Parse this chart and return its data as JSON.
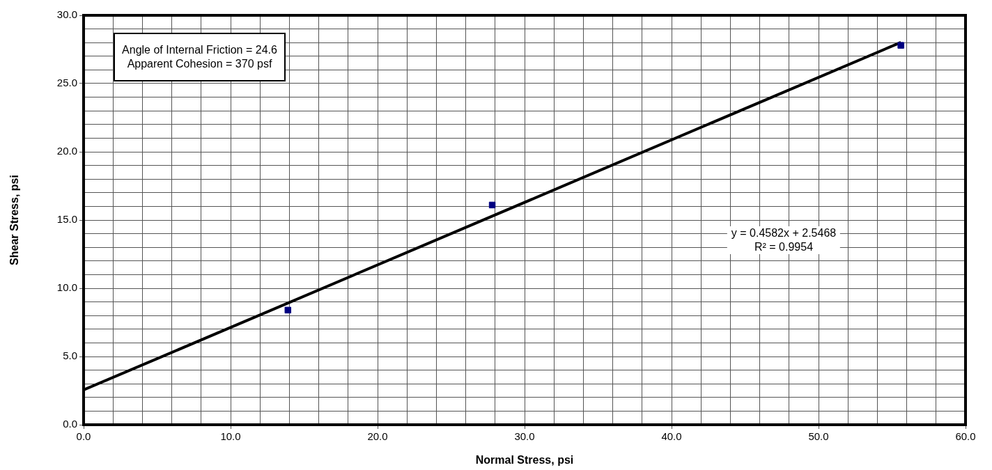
{
  "chart_data": {
    "type": "scatter",
    "xlabel": "Normal Stress, psi",
    "ylabel": "Shear Stress, psi",
    "xlim": [
      0,
      60
    ],
    "ylim": [
      0,
      30
    ],
    "xticks": [
      {
        "value": 0,
        "label": "0.0"
      },
      {
        "value": 2,
        "label": null
      },
      {
        "value": 4,
        "label": null
      },
      {
        "value": 6,
        "label": null
      },
      {
        "value": 8,
        "label": null
      },
      {
        "value": 10,
        "label": "10.0"
      },
      {
        "value": 12,
        "label": null
      },
      {
        "value": 14,
        "label": null
      },
      {
        "value": 16,
        "label": null
      },
      {
        "value": 18,
        "label": null
      },
      {
        "value": 20,
        "label": "20.0"
      },
      {
        "value": 22,
        "label": null
      },
      {
        "value": 24,
        "label": null
      },
      {
        "value": 26,
        "label": null
      },
      {
        "value": 28,
        "label": null
      },
      {
        "value": 30,
        "label": "30.0"
      },
      {
        "value": 32,
        "label": null
      },
      {
        "value": 34,
        "label": null
      },
      {
        "value": 36,
        "label": null
      },
      {
        "value": 38,
        "label": null
      },
      {
        "value": 40,
        "label": "40.0"
      },
      {
        "value": 42,
        "label": null
      },
      {
        "value": 44,
        "label": null
      },
      {
        "value": 46,
        "label": null
      },
      {
        "value": 48,
        "label": null
      },
      {
        "value": 50,
        "label": "50.0"
      },
      {
        "value": 52,
        "label": null
      },
      {
        "value": 54,
        "label": null
      },
      {
        "value": 56,
        "label": null
      },
      {
        "value": 58,
        "label": null
      },
      {
        "value": 60,
        "label": "60.0"
      }
    ],
    "yticks": [
      {
        "value": 0,
        "label": "0.0"
      },
      {
        "value": 1,
        "label": null
      },
      {
        "value": 2,
        "label": null
      },
      {
        "value": 3,
        "label": null
      },
      {
        "value": 4,
        "label": null
      },
      {
        "value": 5,
        "label": "5.0"
      },
      {
        "value": 6,
        "label": null
      },
      {
        "value": 7,
        "label": null
      },
      {
        "value": 8,
        "label": null
      },
      {
        "value": 9,
        "label": null
      },
      {
        "value": 10,
        "label": "10.0"
      },
      {
        "value": 11,
        "label": null
      },
      {
        "value": 12,
        "label": null
      },
      {
        "value": 13,
        "label": null
      },
      {
        "value": 14,
        "label": null
      },
      {
        "value": 15,
        "label": "15.0"
      },
      {
        "value": 16,
        "label": null
      },
      {
        "value": 17,
        "label": null
      },
      {
        "value": 18,
        "label": null
      },
      {
        "value": 19,
        "label": null
      },
      {
        "value": 20,
        "label": "20.0"
      },
      {
        "value": 21,
        "label": null
      },
      {
        "value": 22,
        "label": null
      },
      {
        "value": 23,
        "label": null
      },
      {
        "value": 24,
        "label": null
      },
      {
        "value": 25,
        "label": "25.0"
      },
      {
        "value": 26,
        "label": null
      },
      {
        "value": 27,
        "label": null
      },
      {
        "value": 28,
        "label": null
      },
      {
        "value": 29,
        "label": null
      },
      {
        "value": 30,
        "label": "30.0"
      }
    ],
    "grid": true,
    "legend": false,
    "marker": "square",
    "series": [
      {
        "color": "#000080",
        "x": [
          13.9,
          27.8,
          55.6
        ],
        "values": [
          8.4,
          16.1,
          27.8
        ]
      },
      {
        "type": "line",
        "color": "#000000",
        "x": [
          0,
          55.6
        ],
        "values": [
          2.55,
          28.02
        ],
        "marker": "none",
        "line_style": "solid"
      }
    ],
    "annotations": [
      "Angle of Internal Friction = 24.6\nApparent Cohesion = 370 psf",
      "y = 0.4582x + 2.5468\nR² = 0.9954"
    ]
  }
}
